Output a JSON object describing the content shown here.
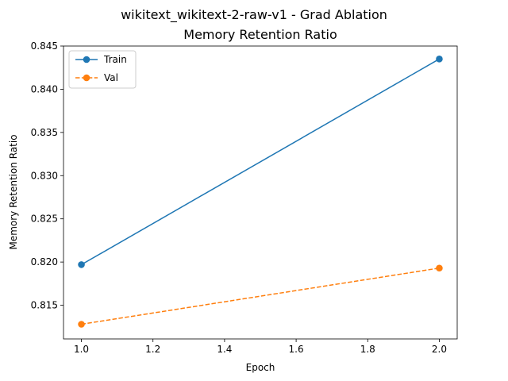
{
  "chart_data": {
    "type": "line",
    "title": "wikitext_wikitext-2-raw-v1 - Grad Ablation",
    "subtitle": "Memory Retention Ratio",
    "xlabel": "Epoch",
    "ylabel": "Memory Retention Ratio",
    "xlim": [
      0.95,
      2.05
    ],
    "ylim": [
      0.8111,
      0.845
    ],
    "x_ticks": [
      "1.0",
      "1.2",
      "1.4",
      "1.6",
      "1.8",
      "2.0"
    ],
    "y_ticks": [
      "0.815",
      "0.820",
      "0.825",
      "0.830",
      "0.835",
      "0.840",
      "0.845"
    ],
    "x": [
      1.0,
      2.0
    ],
    "series": [
      {
        "name": "Train",
        "values": [
          0.8197,
          0.8435
        ],
        "color": "#1f77b4",
        "style": "solid",
        "marker": "circle"
      },
      {
        "name": "Val",
        "values": [
          0.8128,
          0.8193
        ],
        "color": "#ff7f0e",
        "style": "dashed",
        "marker": "circle"
      }
    ],
    "legend_position": "top-left",
    "grid": false
  }
}
